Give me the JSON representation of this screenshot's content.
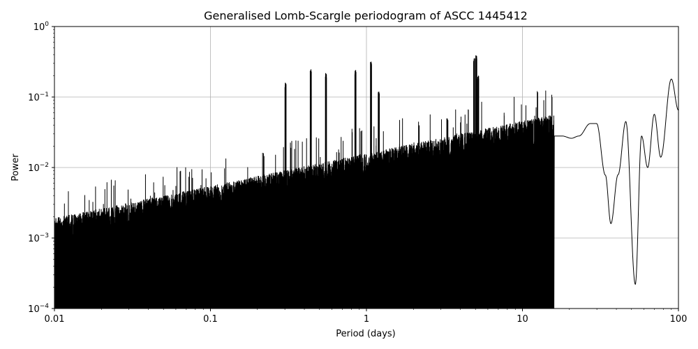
{
  "chart_data": {
    "type": "line",
    "title": "Generalised Lomb-Scargle periodogram of ASCC 1445412",
    "xlabel": "Period (days)",
    "ylabel": "Power",
    "xscale": "log",
    "yscale": "log",
    "xlim": [
      0.01,
      100
    ],
    "ylim": [
      0.0001,
      1
    ],
    "grid": true,
    "series_color": "#000000",
    "x_ticks": [
      {
        "value": 0.01,
        "label": "0.01"
      },
      {
        "value": 0.1,
        "label": "0.1"
      },
      {
        "value": 1,
        "label": "1"
      },
      {
        "value": 10,
        "label": "10"
      },
      {
        "value": 100,
        "label": "100"
      }
    ],
    "y_ticks": [
      {
        "value": 0.0001,
        "base": "10",
        "exp": "−4"
      },
      {
        "value": 0.001,
        "base": "10",
        "exp": "−3"
      },
      {
        "value": 0.01,
        "base": "10",
        "exp": "−2"
      },
      {
        "value": 0.1,
        "base": "10",
        "exp": "−1"
      },
      {
        "value": 1,
        "base": "10",
        "exp": "0"
      }
    ],
    "peaks": [
      {
        "x": 0.303,
        "y": 0.16
      },
      {
        "x": 0.44,
        "y": 0.25
      },
      {
        "x": 0.55,
        "y": 0.22
      },
      {
        "x": 0.85,
        "y": 0.24
      },
      {
        "x": 1.07,
        "y": 0.32
      },
      {
        "x": 1.2,
        "y": 0.12
      },
      {
        "x": 3.3,
        "y": 0.05
      },
      {
        "x": 4.9,
        "y": 0.36
      },
      {
        "x": 5.06,
        "y": 0.4
      },
      {
        "x": 5.2,
        "y": 0.2
      }
    ],
    "long_period_envelope": [
      {
        "x": 15.9,
        "y": 0.028
      },
      {
        "x": 18.0,
        "y": 0.028
      },
      {
        "x": 20.6,
        "y": 0.026
      },
      {
        "x": 23.0,
        "y": 0.028
      },
      {
        "x": 27.2,
        "y": 0.042
      },
      {
        "x": 29.9,
        "y": 0.042
      },
      {
        "x": 34.0,
        "y": 0.0078
      },
      {
        "x": 36.9,
        "y": 0.0016
      },
      {
        "x": 41.0,
        "y": 0.0079
      },
      {
        "x": 46.0,
        "y": 0.045
      },
      {
        "x": 52.9,
        "y": 0.00022
      },
      {
        "x": 58.0,
        "y": 0.028
      },
      {
        "x": 63.5,
        "y": 0.01
      },
      {
        "x": 70.0,
        "y": 0.057
      },
      {
        "x": 77.0,
        "y": 0.014
      },
      {
        "x": 90.0,
        "y": 0.18
      },
      {
        "x": 100.0,
        "y": 0.065
      }
    ]
  }
}
